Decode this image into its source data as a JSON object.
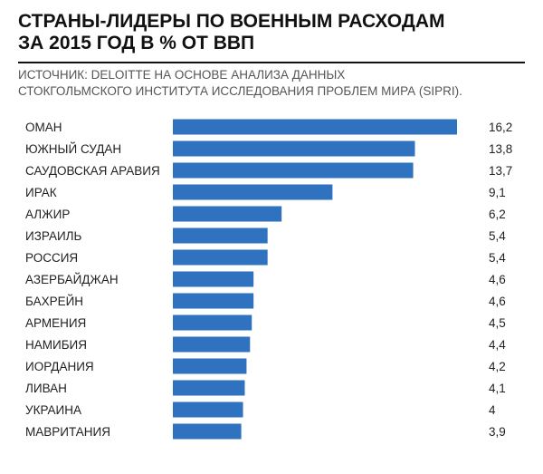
{
  "header": {
    "title_line1": "СТРАНЫ-ЛИДЕРЫ ПО ВОЕННЫМ РАСХОДАМ",
    "title_line2": "ЗА 2015 ГОД В % ОТ ВВП",
    "source_line1": "ИСТОЧНИК: DELOITTE НА ОСНОВЕ АНАЛИЗА ДАННЫХ",
    "source_line2": "СТОКГОЛЬМСКОГО ИНСТИТУТА ИССЛЕДОВАНИЯ ПРОБЛЕМ МИРА (SIPRI)."
  },
  "colors": {
    "bar": "#2f72bf",
    "text": "#222222",
    "rule": "#111111"
  },
  "chart_data": {
    "type": "bar",
    "orientation": "horizontal",
    "categories": [
      "ОМАН",
      "ЮЖНЫЙ СУДАН",
      "САУДОВСКАЯ АРАВИЯ",
      "ИРАК",
      "АЛЖИР",
      "ИЗРАИЛЬ",
      "РОССИЯ",
      "АЗЕРБАЙДЖАН",
      "БАХРЕЙН",
      "АРМЕНИЯ",
      "НАМИБИЯ",
      "ИОРДАНИЯ",
      "ЛИВАН",
      "УКРАИНА",
      "МАВРИТАНИЯ"
    ],
    "values": [
      16.2,
      13.8,
      13.7,
      9.1,
      6.2,
      5.4,
      5.4,
      4.6,
      4.6,
      4.5,
      4.4,
      4.2,
      4.1,
      4,
      3.9
    ],
    "value_labels": [
      "16,2",
      "13,8",
      "13,7",
      "9,1",
      "6,2",
      "5,4",
      "5,4",
      "4,6",
      "4,6",
      "4,5",
      "4,4",
      "4,2",
      "4,1",
      "4",
      "3,9"
    ],
    "title": "СТРАНЫ-ЛИДЕРЫ ПО ВОЕННЫМ РАСХОДАМ ЗА 2015 ГОД В % ОТ ВВП",
    "xlabel": "",
    "ylabel": "",
    "xlim": [
      0,
      16.2
    ],
    "grid": false,
    "legend": "none"
  }
}
